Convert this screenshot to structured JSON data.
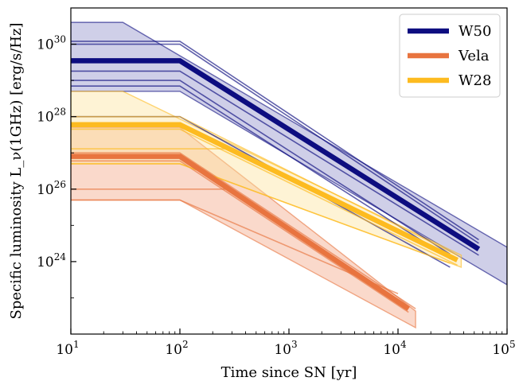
{
  "chart_data": {
    "type": "line",
    "title": "",
    "xlabel": "Time since SN [yr]",
    "ylabel": "Specific luminosity L_ν(1GHz) [erg/s/Hz]",
    "x_scale": "log",
    "y_scale": "log",
    "xlim": [
      10,
      100000
    ],
    "ylim": [
      1e+22,
      1e+31
    ],
    "x_ticks": [
      {
        "value": 10,
        "base": "10",
        "exp": "1"
      },
      {
        "value": 100,
        "base": "10",
        "exp": "2"
      },
      {
        "value": 1000,
        "base": "10",
        "exp": "3"
      },
      {
        "value": 10000,
        "base": "10",
        "exp": "4"
      },
      {
        "value": 100000,
        "base": "10",
        "exp": "5"
      }
    ],
    "y_ticks": [
      {
        "value": 1e+24,
        "base": "10",
        "exp": "24"
      },
      {
        "value": 1e+26,
        "base": "10",
        "exp": "26"
      },
      {
        "value": 1e+28,
        "base": "10",
        "exp": "28"
      },
      {
        "value": 1e+30,
        "base": "10",
        "exp": "30"
      }
    ],
    "grid": false,
    "legend_position": "top-right",
    "legend": [
      "W50",
      "Vela",
      "W28"
    ],
    "series": [
      {
        "name": "W50",
        "color": "#0d0d80",
        "fill_color": "#8c8cc8",
        "band_upper": [
          [
            10,
            4e+30
          ],
          [
            30,
            4e+30
          ],
          [
            100000,
            2.5e+24
          ]
        ],
        "band_lower": [
          [
            10,
            5e+28
          ],
          [
            100,
            5e+28
          ],
          [
            100000,
            2.3e+23
          ]
        ],
        "main": [
          [
            10,
            3.5e+29
          ],
          [
            100,
            3.5e+29
          ],
          [
            55000,
            2.2e+24
          ]
        ],
        "thin_lines": [
          [
            [
              10,
              1.2e+30
            ],
            [
              100,
              1.2e+30
            ],
            [
              55000,
              4e+24
            ]
          ],
          [
            [
              10,
              1e+30
            ],
            [
              100,
              1e+30
            ],
            [
              55000,
              3.2e+24
            ]
          ],
          [
            [
              10,
              1.8e+29
            ],
            [
              100,
              1.8e+29
            ],
            [
              55000,
              1.5e+24
            ]
          ],
          [
            [
              10,
              1e+29
            ],
            [
              100,
              1e+29
            ],
            [
              30000,
              1.6e+24
            ]
          ],
          [
            [
              10,
              7e+28
            ],
            [
              100,
              7e+28
            ],
            [
              30000,
              1.2e+24
            ]
          ],
          [
            [
              10,
              1e+28
            ],
            [
              100,
              1e+28
            ],
            [
              30000,
              7e+23
            ]
          ]
        ]
      },
      {
        "name": "Vela",
        "color": "#e8743f",
        "fill_color": "#f4a582",
        "band_upper": [
          [
            10,
            5e+27
          ],
          [
            100,
            5e+27
          ],
          [
            14500,
            4.3e+22
          ]
        ],
        "band_lower": [
          [
            10,
            5e+25
          ],
          [
            100,
            5e+25
          ],
          [
            14500,
            1.5e+22
          ]
        ],
        "main": [
          [
            10,
            8e+26
          ],
          [
            100,
            8e+26
          ],
          [
            12500,
            5e+22
          ]
        ],
        "thin_lines": [
          [
            [
              10,
              1e+27
            ],
            [
              100,
              1e+27
            ],
            [
              14500,
              5e+22
            ]
          ],
          [
            [
              10,
              6e+26
            ],
            [
              100,
              6e+26
            ],
            [
              12500,
              4e+22
            ]
          ],
          [
            [
              10,
              1e+26
            ],
            [
              300,
              1e+26
            ]
          ],
          [
            [
              10,
              5e+25
            ],
            [
              100,
              5e+25
            ],
            [
              10000,
              1.3e+23
            ]
          ]
        ]
      },
      {
        "name": "W28",
        "color": "#fdbb20",
        "fill_color": "#fde39a",
        "band_upper": [
          [
            10,
            5e+28
          ],
          [
            30,
            5e+28
          ],
          [
            38000,
            1.5e+24
          ]
        ],
        "band_lower": [
          [
            10,
            5e+26
          ],
          [
            100,
            5e+26
          ],
          [
            38000,
            7e+23
          ]
        ],
        "main": [
          [
            10,
            6e+27
          ],
          [
            100,
            6e+27
          ],
          [
            35000,
            1.1e+24
          ]
        ],
        "thin_lines": [
          [
            [
              10,
              1e+28
            ],
            [
              100,
              1e+28
            ],
            [
              35000,
              1.5e+24
            ]
          ],
          [
            [
              10,
              4.5e+27
            ],
            [
              100,
              4.5e+27
            ],
            [
              35000,
              8e+23
            ]
          ],
          [
            [
              10,
              1.3e+27
            ],
            [
              300,
              1.3e+27
            ]
          ],
          [
            [
              10,
              5e+26
            ],
            [
              100,
              5e+26
            ],
            [
              30000,
              9e+23
            ]
          ]
        ]
      }
    ]
  }
}
